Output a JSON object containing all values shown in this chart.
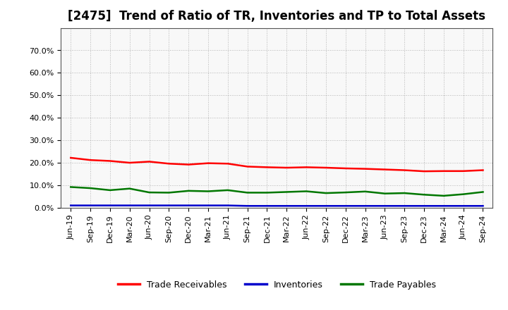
{
  "title": "[2475]  Trend of Ratio of TR, Inventories and TP to Total Assets",
  "x_labels": [
    "Jun-19",
    "Sep-19",
    "Dec-19",
    "Mar-20",
    "Jun-20",
    "Sep-20",
    "Dec-20",
    "Mar-21",
    "Jun-21",
    "Sep-21",
    "Dec-21",
    "Mar-22",
    "Jun-22",
    "Sep-22",
    "Dec-22",
    "Mar-23",
    "Jun-23",
    "Sep-23",
    "Dec-23",
    "Mar-24",
    "Jun-24",
    "Sep-24"
  ],
  "trade_receivables": [
    0.222,
    0.212,
    0.208,
    0.2,
    0.205,
    0.196,
    0.192,
    0.198,
    0.196,
    0.183,
    0.18,
    0.178,
    0.18,
    0.178,
    0.175,
    0.173,
    0.17,
    0.167,
    0.162,
    0.163,
    0.163,
    0.167
  ],
  "inventories": [
    0.01,
    0.01,
    0.01,
    0.01,
    0.01,
    0.01,
    0.01,
    0.01,
    0.01,
    0.008,
    0.008,
    0.008,
    0.008,
    0.008,
    0.008,
    0.008,
    0.008,
    0.008,
    0.008,
    0.008,
    0.008,
    0.008
  ],
  "trade_payables": [
    0.092,
    0.087,
    0.078,
    0.085,
    0.068,
    0.067,
    0.075,
    0.073,
    0.078,
    0.067,
    0.067,
    0.07,
    0.073,
    0.065,
    0.068,
    0.072,
    0.063,
    0.065,
    0.058,
    0.053,
    0.06,
    0.07
  ],
  "tr_color": "#ff0000",
  "inv_color": "#0000cc",
  "tp_color": "#007700",
  "ylim": [
    0.0,
    0.8
  ],
  "yticks": [
    0.0,
    0.1,
    0.2,
    0.3,
    0.4,
    0.5,
    0.6,
    0.7
  ],
  "legend_labels": [
    "Trade Receivables",
    "Inventories",
    "Trade Payables"
  ],
  "bg_color": "#ffffff",
  "plot_bg_color": "#f8f8f8",
  "grid_color": "#888888",
  "line_width": 1.8,
  "title_fontsize": 12,
  "tick_fontsize": 8,
  "legend_fontsize": 9
}
